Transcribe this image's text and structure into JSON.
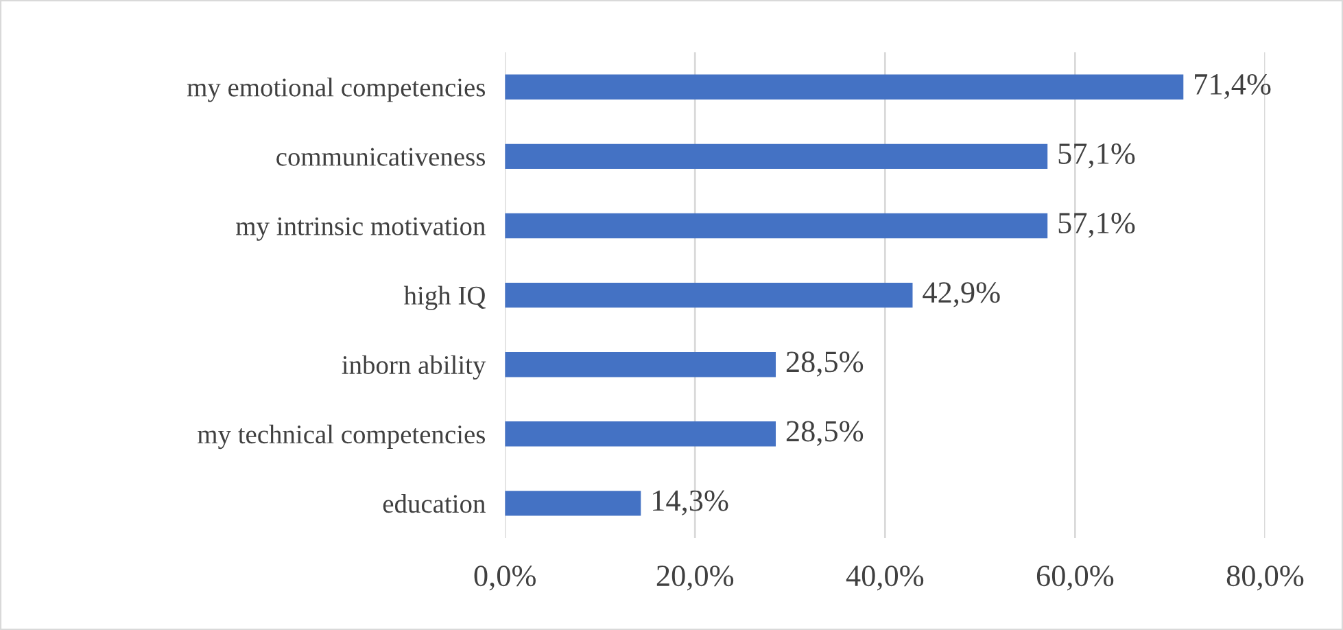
{
  "chart_data": {
    "type": "bar",
    "orientation": "horizontal",
    "categories": [
      "my emotional competencies",
      "communicativeness",
      "my intrinsic motivation",
      "high IQ",
      "inborn ability",
      "my technical competencies",
      "education"
    ],
    "values": [
      71.4,
      57.1,
      57.1,
      42.9,
      28.5,
      28.5,
      14.3
    ],
    "value_labels": [
      "71,4%",
      "57,1%",
      "57,1%",
      "42,9%",
      "28,5%",
      "28,5%",
      "14,3%"
    ],
    "color": "#4472c4",
    "xlim": [
      0,
      80
    ],
    "xticks": [
      {
        "value": 0,
        "label": "0,0%"
      },
      {
        "value": 20,
        "label": "20,0%"
      },
      {
        "value": 40,
        "label": "40,0%"
      },
      {
        "value": 60,
        "label": "60,0%"
      },
      {
        "value": 80,
        "label": "80,0%"
      }
    ],
    "grid": "x",
    "legend": false
  }
}
